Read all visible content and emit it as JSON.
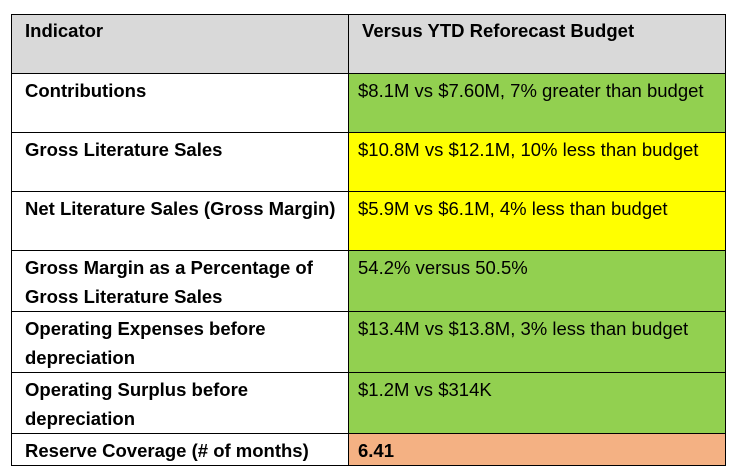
{
  "header": {
    "col1": "Indicator",
    "col2": "Versus YTD Reforecast Budget"
  },
  "colors": {
    "header_bg": "#d9d9d9",
    "green": "#92d050",
    "yellow": "#ffff00",
    "salmon": "#f4b183",
    "border": "#000000"
  },
  "rows": [
    {
      "indicator": "Contributions",
      "value": "$8.1M vs $7.60M, 7% greater than budget",
      "status": "green"
    },
    {
      "indicator": "Gross Literature Sales",
      "value": "$10.8M vs $12.1M, 10% less than budget",
      "status": "yellow"
    },
    {
      "indicator": "Net Literature Sales (Gross Margin)",
      "value": "$5.9M vs $6.1M, 4% less than budget",
      "status": "yellow"
    },
    {
      "indicator": "Gross Margin as a Percentage of Gross Literature Sales",
      "value": "54.2% versus 50.5%",
      "status": "green"
    },
    {
      "indicator": "Operating Expenses before depreciation",
      "value": "$13.4M vs $13.8M, 3% less than budget",
      "status": "green"
    },
    {
      "indicator": "Operating Surplus before depreciation",
      "value": "$1.2M vs $314K",
      "status": "green"
    },
    {
      "indicator": "Reserve Coverage (# of months)",
      "value": "6.41",
      "status": "salmon"
    }
  ]
}
